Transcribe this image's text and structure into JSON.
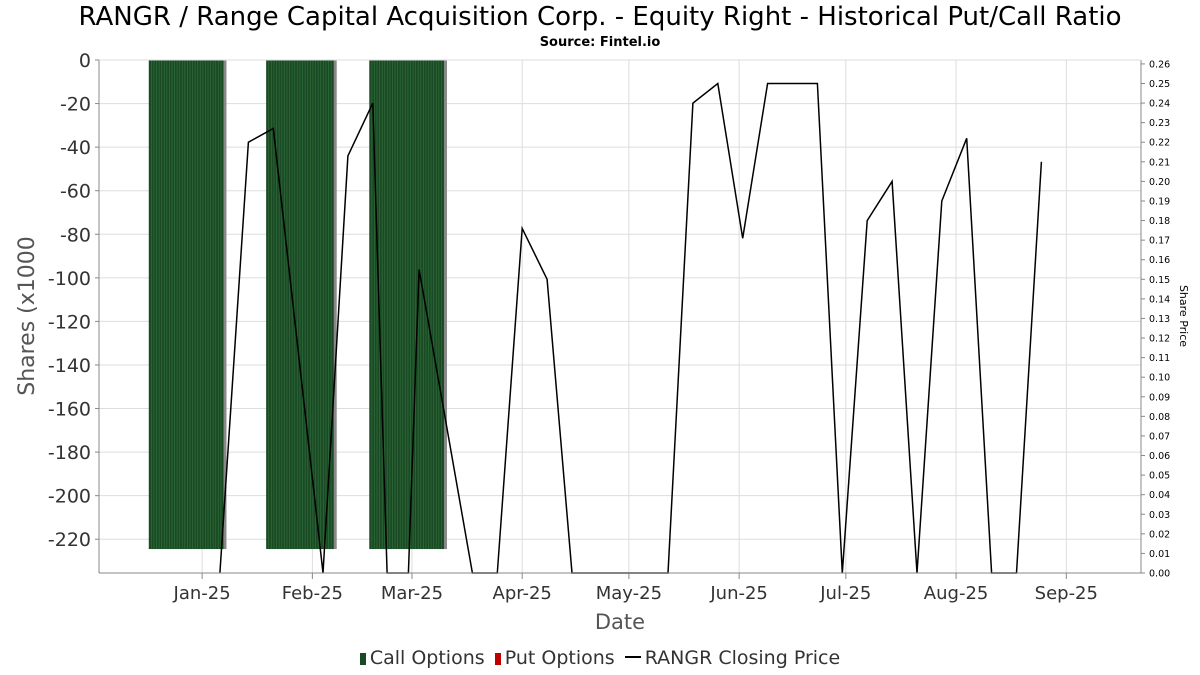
{
  "chart": {
    "title": "RANGR / Range Capital Acquisition Corp. - Equity Right - Historical Put/Call Ratio",
    "subtitle": "Source: Fintel.io"
  },
  "legend": {
    "items": [
      {
        "label": "Call Options",
        "color": "#1a4a24"
      },
      {
        "label": "Put Options",
        "color": "#c00000"
      },
      {
        "label": "RANGR Closing Price",
        "color": "#000000"
      }
    ]
  },
  "chart_data": {
    "type": "bar",
    "xlabel": "Date",
    "ylabel": "Shares (x1000",
    "y2label": "Share Price",
    "ylim": [
      -235.5,
      0
    ],
    "y2lim": [
      0,
      0.262
    ],
    "yticks": [
      0,
      -20,
      -40,
      -60,
      -80,
      -100,
      -120,
      -140,
      -160,
      -180,
      -200,
      -220
    ],
    "y2ticks": [
      "0.26",
      "0.25",
      "0.24",
      "0.23",
      "0.22",
      "0.21",
      "0.20",
      "0.19",
      "0.18",
      "0.17",
      "0.16",
      "0.15",
      "0.14",
      "0.13",
      "0.12",
      "0.11",
      "0.10",
      "0.09",
      "0.08",
      "0.07",
      "0.06",
      "0.05",
      "0.04",
      "0.03",
      "0.02",
      "0.01",
      "0.00"
    ],
    "xlim": [
      "2024-12-03",
      "2025-09-22"
    ],
    "xticks": [
      {
        "date": "2025-01-01",
        "label": "Jan-25"
      },
      {
        "date": "2025-02-01",
        "label": "Feb-25"
      },
      {
        "date": "2025-03-01",
        "label": "Mar-25"
      },
      {
        "date": "2025-04-01",
        "label": "Apr-25"
      },
      {
        "date": "2025-05-01",
        "label": "May-25"
      },
      {
        "date": "2025-06-01",
        "label": "Jun-25"
      },
      {
        "date": "2025-07-01",
        "label": "Jul-25"
      },
      {
        "date": "2025-08-01",
        "label": "Aug-25"
      },
      {
        "date": "2025-09-01",
        "label": "Sep-25"
      }
    ],
    "grid": true,
    "legend_position": "bottom",
    "series": [
      {
        "name": "Call Options",
        "type": "bar",
        "blocks": [
          {
            "start": "2024-12-17",
            "end": "2025-01-07",
            "value": -224.5
          },
          {
            "start": "2025-01-19",
            "end": "2025-02-07",
            "value": -224.5
          },
          {
            "start": "2025-02-17",
            "end": "2025-03-10",
            "value": -224.5
          }
        ]
      },
      {
        "name": "Put Options",
        "type": "bar",
        "blocks": []
      },
      {
        "name": "RANGR Closing Price",
        "type": "line",
        "points": [
          [
            "2025-01-06",
            0.0
          ],
          [
            "2025-01-14",
            0.22
          ],
          [
            "2025-01-21",
            0.227
          ],
          [
            "2025-02-04",
            0.0
          ],
          [
            "2025-02-11",
            0.213
          ],
          [
            "2025-02-18",
            0.24
          ],
          [
            "2025-02-22",
            0.0
          ],
          [
            "2025-02-28",
            0.0
          ],
          [
            "2025-03-03",
            0.155
          ],
          [
            "2025-03-18",
            0.0
          ],
          [
            "2025-03-25",
            0.0
          ],
          [
            "2025-04-01",
            0.176
          ],
          [
            "2025-04-08",
            0.15
          ],
          [
            "2025-04-15",
            0.0
          ],
          [
            "2025-05-12",
            0.0
          ],
          [
            "2025-05-19",
            0.24
          ],
          [
            "2025-05-26",
            0.25
          ],
          [
            "2025-06-02",
            0.171
          ],
          [
            "2025-06-09",
            0.25
          ],
          [
            "2025-06-23",
            0.25
          ],
          [
            "2025-06-30",
            0.0
          ],
          [
            "2025-07-07",
            0.18
          ],
          [
            "2025-07-14",
            0.2
          ],
          [
            "2025-07-21",
            0.0
          ],
          [
            "2025-07-28",
            0.19
          ],
          [
            "2025-08-04",
            0.222
          ],
          [
            "2025-08-11",
            0.0
          ],
          [
            "2025-08-18",
            0.0
          ],
          [
            "2025-08-25",
            0.21
          ]
        ]
      }
    ]
  }
}
